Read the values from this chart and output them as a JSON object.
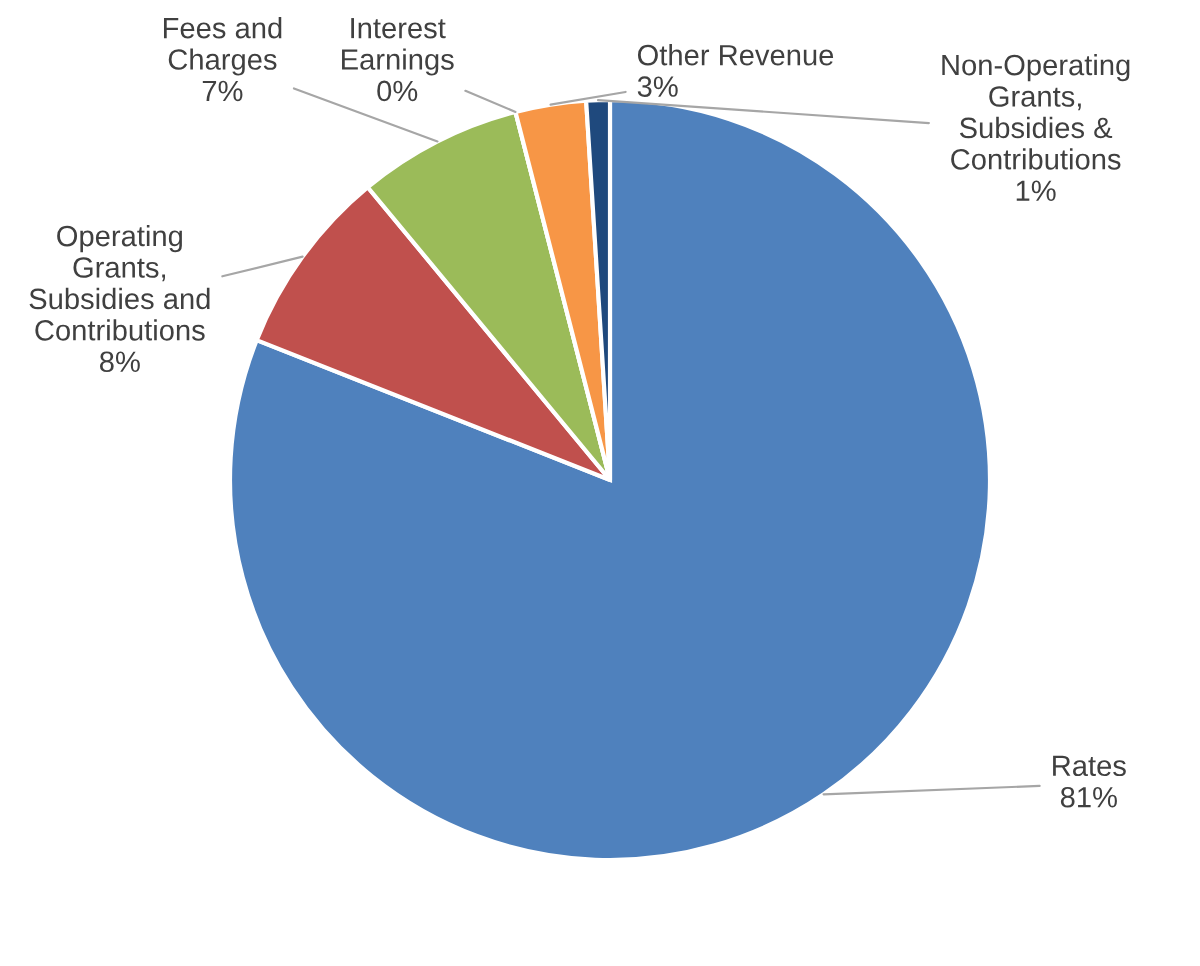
{
  "chart_data": {
    "type": "pie",
    "categories": [
      "Rates",
      "Operating Grants, Subsidies and Contributions",
      "Fees and Charges",
      "Interest Earnings",
      "Other Revenue",
      "Non-Operating Grants, Subsidies & Contributions"
    ],
    "values": [
      81,
      8,
      7,
      0,
      3,
      1
    ],
    "value_labels": [
      "81%",
      "8%",
      "7%",
      "0%",
      "3%",
      "1%"
    ],
    "colors": [
      "#4f81bd",
      "#c0504d",
      "#9bbb59",
      "#8064a2",
      "#f79646",
      "#1f497d"
    ]
  }
}
